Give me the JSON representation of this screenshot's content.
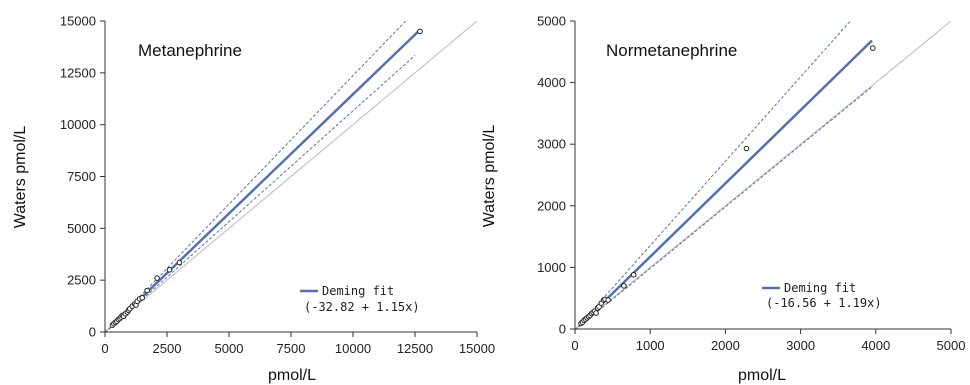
{
  "chart_data": [
    {
      "type": "scatter",
      "title": "Metanephrine",
      "xlabel": "pmol/L",
      "ylabel": "Waters pmol/L",
      "xlim": [
        0,
        15000
      ],
      "ylim": [
        0,
        15000
      ],
      "xticks": [
        0,
        2500,
        5000,
        7500,
        10000,
        12500,
        15000
      ],
      "yticks": [
        0,
        2500,
        5000,
        7500,
        10000,
        12500,
        15000
      ],
      "legend": {
        "position": "bottom-right",
        "label": "Deming fit",
        "equation": "(-32.82 + 1.15x)"
      },
      "fit": {
        "intercept": -32.82,
        "slope": 1.15,
        "x_range": [
          300,
          12700
        ]
      },
      "confidence_band": {
        "lower_slope": 1.07,
        "upper_slope": 1.24,
        "x_range": [
          0,
          12500
        ]
      },
      "identity_line": true,
      "points": [
        {
          "x": 300,
          "y": 330
        },
        {
          "x": 360,
          "y": 400
        },
        {
          "x": 420,
          "y": 470
        },
        {
          "x": 480,
          "y": 520
        },
        {
          "x": 540,
          "y": 600
        },
        {
          "x": 600,
          "y": 650
        },
        {
          "x": 650,
          "y": 720
        },
        {
          "x": 700,
          "y": 800
        },
        {
          "x": 750,
          "y": 760
        },
        {
          "x": 820,
          "y": 880
        },
        {
          "x": 900,
          "y": 960
        },
        {
          "x": 950,
          "y": 1050
        },
        {
          "x": 1000,
          "y": 1120
        },
        {
          "x": 1100,
          "y": 1250
        },
        {
          "x": 1200,
          "y": 1350
        },
        {
          "x": 1250,
          "y": 1300
        },
        {
          "x": 1300,
          "y": 1480
        },
        {
          "x": 1400,
          "y": 1600
        },
        {
          "x": 1500,
          "y": 1650
        },
        {
          "x": 1700,
          "y": 2000
        },
        {
          "x": 2100,
          "y": 2600
        },
        {
          "x": 2600,
          "y": 3000
        },
        {
          "x": 3000,
          "y": 3350
        },
        {
          "x": 12700,
          "y": 14500
        }
      ]
    },
    {
      "type": "scatter",
      "title": "Normetanephrine",
      "xlabel": "pmol/L",
      "ylabel": "Waters pmol/L",
      "xlim": [
        0,
        5000
      ],
      "ylim": [
        0,
        5000
      ],
      "xticks": [
        0,
        1000,
        2000,
        3000,
        4000,
        5000
      ],
      "yticks": [
        0,
        1000,
        2000,
        3000,
        4000,
        5000
      ],
      "legend": {
        "position": "bottom-right",
        "label": "Deming fit",
        "equation": "(-16.56 + 1.19x)"
      },
      "fit": {
        "intercept": -16.56,
        "slope": 1.19,
        "x_range": [
          80,
          3950
        ]
      },
      "confidence_band": {
        "lower_slope": 1.0,
        "upper_slope": 1.37,
        "x_range": [
          0,
          3950
        ]
      },
      "identity_line": true,
      "points": [
        {
          "x": 80,
          "y": 90
        },
        {
          "x": 100,
          "y": 110
        },
        {
          "x": 120,
          "y": 140
        },
        {
          "x": 140,
          "y": 160
        },
        {
          "x": 160,
          "y": 180
        },
        {
          "x": 180,
          "y": 200
        },
        {
          "x": 200,
          "y": 220
        },
        {
          "x": 220,
          "y": 250
        },
        {
          "x": 240,
          "y": 270
        },
        {
          "x": 260,
          "y": 290
        },
        {
          "x": 280,
          "y": 260
        },
        {
          "x": 300,
          "y": 340
        },
        {
          "x": 320,
          "y": 360
        },
        {
          "x": 350,
          "y": 420
        },
        {
          "x": 380,
          "y": 470
        },
        {
          "x": 400,
          "y": 480
        },
        {
          "x": 440,
          "y": 470
        },
        {
          "x": 650,
          "y": 700
        },
        {
          "x": 780,
          "y": 880
        },
        {
          "x": 2280,
          "y": 2930
        },
        {
          "x": 3960,
          "y": 4560
        }
      ]
    }
  ]
}
